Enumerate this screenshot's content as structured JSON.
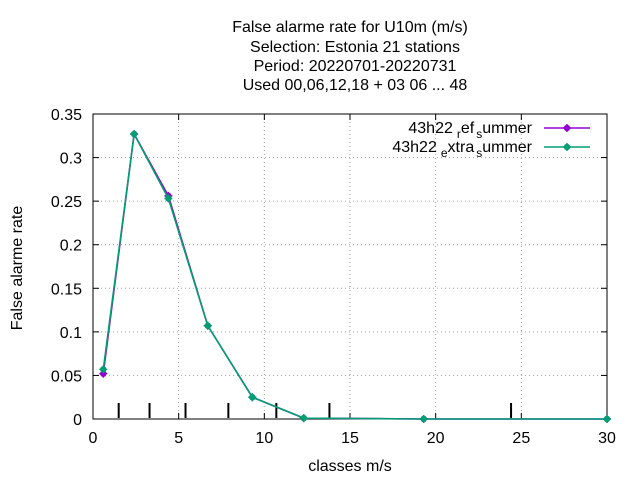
{
  "chart_data": {
    "type": "line",
    "title_lines": [
      "False alarme rate  for U10m (m/s)",
      "Selection: Estonia      21 stations",
      "Period: 20220701-20220731",
      "Used  00,06,12,18  + 03 06 ... 48"
    ],
    "xlabel": "classes m/s",
    "ylabel": "False alarme rate",
    "xlim": [
      0,
      30
    ],
    "ylim": [
      0,
      0.35
    ],
    "x_ticks": [
      0,
      5,
      10,
      15,
      20,
      25,
      30
    ],
    "x_tick_labels": [
      "0",
      "5",
      "10",
      "15",
      "20",
      "25",
      "30"
    ],
    "y_ticks": [
      0,
      0.05,
      0.1,
      0.15,
      0.2,
      0.25,
      0.3,
      0.35
    ],
    "y_tick_labels": [
      "0",
      "0.05",
      "0.1",
      "0.15",
      "0.2",
      "0.25",
      "0.3",
      "0.35"
    ],
    "grid": true,
    "legend_position": "top-right",
    "class_boundaries": [
      1.5,
      3.3,
      5.4,
      7.9,
      10.7,
      13.8,
      24.4
    ],
    "series": [
      {
        "name_main": "43h22",
        "name_sub1": "r",
        "name_mid": "ef",
        "name_sub2": "s",
        "name_end": "ummer",
        "color": "#9400d3",
        "x": [
          0.6,
          2.4,
          4.4,
          6.7,
          9.3,
          12.3,
          19.3,
          30.0
        ],
        "y": [
          0.052,
          0.327,
          0.256,
          0.107,
          0.025,
          0.001,
          0.0,
          0.0
        ]
      },
      {
        "name_main": "43h22",
        "name_sub1": "e",
        "name_mid": "xtra",
        "name_sub2": "s",
        "name_end": "ummer",
        "color": "#009e73",
        "x": [
          0.6,
          2.4,
          4.4,
          6.7,
          9.3,
          12.3,
          19.3,
          30.0
        ],
        "y": [
          0.057,
          0.327,
          0.253,
          0.107,
          0.025,
          0.001,
          0.0,
          0.0
        ]
      }
    ]
  }
}
